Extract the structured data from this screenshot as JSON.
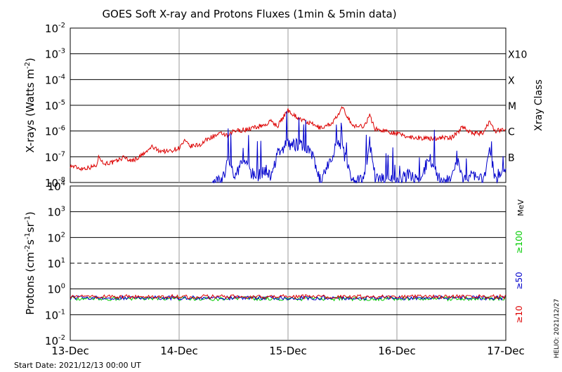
{
  "title": "GOES Soft X-ray and Protons Fluxes   (1min & 5min data)",
  "start_date": "Start Date: 2021/12/13 00:00 UT",
  "side_label": "HELIO: 2021/12/27",
  "colors": {
    "red": "#dd0000",
    "blue": "#0000cc",
    "green": "#00cc00",
    "grid_v": "#999999"
  },
  "chart_data": [
    {
      "type": "line",
      "panel": "xray",
      "ylabel_base": "X-rays (Watts m",
      "ylabel_sup": "-2",
      "ylabel_close": ")",
      "yscale": "log",
      "ylim": [
        1e-08,
        0.01
      ],
      "y_ticks": [
        {
          "base": "10",
          "exp": "-2"
        },
        {
          "base": "10",
          "exp": "-3"
        },
        {
          "base": "10",
          "exp": "-4"
        },
        {
          "base": "10",
          "exp": "-5"
        },
        {
          "base": "10",
          "exp": "-6"
        },
        {
          "base": "10",
          "exp": "-7"
        },
        {
          "base": "10",
          "exp": "-8"
        }
      ],
      "x_ticks": [
        "13-Dec",
        "14-Dec",
        "15-Dec",
        "16-Dec",
        "17-Dec"
      ],
      "xlim_days": [
        0,
        4
      ],
      "right_axis_title": "Xray Class",
      "class_labels": [
        "X10",
        "X",
        "M",
        "C",
        "B"
      ],
      "series": [
        {
          "color": "red",
          "x": [
            0,
            0.1,
            0.2,
            0.25,
            0.26,
            0.3,
            0.4,
            0.5,
            0.55,
            0.6,
            0.7,
            0.75,
            0.8,
            0.9,
            1.0,
            1.05,
            1.1,
            1.2,
            1.25,
            1.3,
            1.4,
            1.45,
            1.5,
            1.6,
            1.7,
            1.8,
            1.85,
            1.9,
            2.0,
            2.1,
            2.2,
            2.3,
            2.4,
            2.45,
            2.5,
            2.6,
            2.7,
            2.75,
            2.8,
            2.9,
            3.0,
            3.1,
            3.2,
            3.3,
            3.4,
            3.5,
            3.55,
            3.6,
            3.7,
            3.8,
            3.85,
            3.9,
            4.0
          ],
          "y": [
            4.5e-08,
            3.5e-08,
            4e-08,
            5e-08,
            1.3e-07,
            5.5e-08,
            6e-08,
            1e-07,
            7e-08,
            8e-08,
            1.5e-07,
            2.5e-07,
            1.8e-07,
            1.6e-07,
            2.2e-07,
            4e-07,
            2.5e-07,
            3e-07,
            4.5e-07,
            6e-07,
            8e-07,
            6e-07,
            1e-06,
            1.1e-06,
            1.4e-06,
            1.8e-06,
            2.5e-06,
            1.5e-06,
            6.5e-06,
            3e-06,
            2e-06,
            1.3e-06,
            2e-06,
            3.5e-06,
            8e-06,
            1.5e-06,
            1.6e-06,
            4e-06,
            1.2e-06,
            1e-06,
            8e-07,
            6e-07,
            5.5e-07,
            5e-07,
            5.5e-07,
            5.5e-07,
            8e-07,
            1.5e-06,
            8e-07,
            8.5e-07,
            2.5e-06,
            1e-06,
            1.2e-06
          ]
        },
        {
          "color": "blue",
          "x": [
            1.3,
            1.4,
            1.45,
            1.5,
            1.6,
            1.7,
            1.8,
            1.85,
            1.9,
            2.0,
            2.1,
            2.2,
            2.3,
            2.4,
            2.45,
            2.5,
            2.6,
            2.7,
            2.75,
            2.8,
            2.9,
            3.0,
            3.1,
            3.2,
            3.3,
            3.4,
            3.5,
            3.55,
            3.6,
            3.7,
            3.8,
            3.85,
            3.9,
            4.0
          ],
          "y": [
            1e-08,
            1.2e-08,
            1e-07,
            2e-08,
            6e-08,
            1.5e-08,
            3e-08,
            1.5e-08,
            1.5e-07,
            3e-07,
            3e-07,
            2e-07,
            1e-08,
            1e-07,
            3e-07,
            2e-07,
            1e-08,
            1.5e-08,
            3.5e-07,
            1.5e-08,
            1.2e-08,
            1e-08,
            2e-08,
            1e-08,
            1e-07,
            1e-08,
            1.2e-08,
            1e-07,
            1.5e-08,
            2e-08,
            1.2e-08,
            2e-07,
            1.5e-08,
            3.5e-08
          ]
        }
      ]
    },
    {
      "type": "line",
      "panel": "protons",
      "ylabel_base": "Protons (cm",
      "ylabel_sup1": "-2",
      "ylabel_mid": "s",
      "ylabel_sup2": "-1",
      "ylabel_mid2": "sr",
      "ylabel_sup3": "-1",
      "ylabel_close": ")",
      "yscale": "log",
      "ylim": [
        0.01,
        10000
      ],
      "y_ticks": [
        {
          "base": "10",
          "exp": "4"
        },
        {
          "base": "10",
          "exp": "3"
        },
        {
          "base": "10",
          "exp": "2"
        },
        {
          "base": "10",
          "exp": "1"
        },
        {
          "base": "10",
          "exp": "0"
        },
        {
          "base": "10",
          "exp": "-1"
        },
        {
          "base": "10",
          "exp": "-2"
        }
      ],
      "x_ticks": [
        "13-Dec",
        "14-Dec",
        "15-Dec",
        "16-Dec",
        "17-Dec"
      ],
      "xlim_days": [
        0,
        4
      ],
      "threshold": 10,
      "energy_unit": "MeV",
      "energy_labels": [
        {
          "text": "≥100",
          "color": "green"
        },
        {
          "text": "≥50",
          "color": "blue"
        },
        {
          "text": "≥10",
          "color": "red"
        }
      ],
      "series": [
        {
          "color": "green",
          "level": 0.42
        },
        {
          "color": "blue",
          "level": 0.45
        },
        {
          "color": "red",
          "level": 0.5
        }
      ]
    }
  ]
}
